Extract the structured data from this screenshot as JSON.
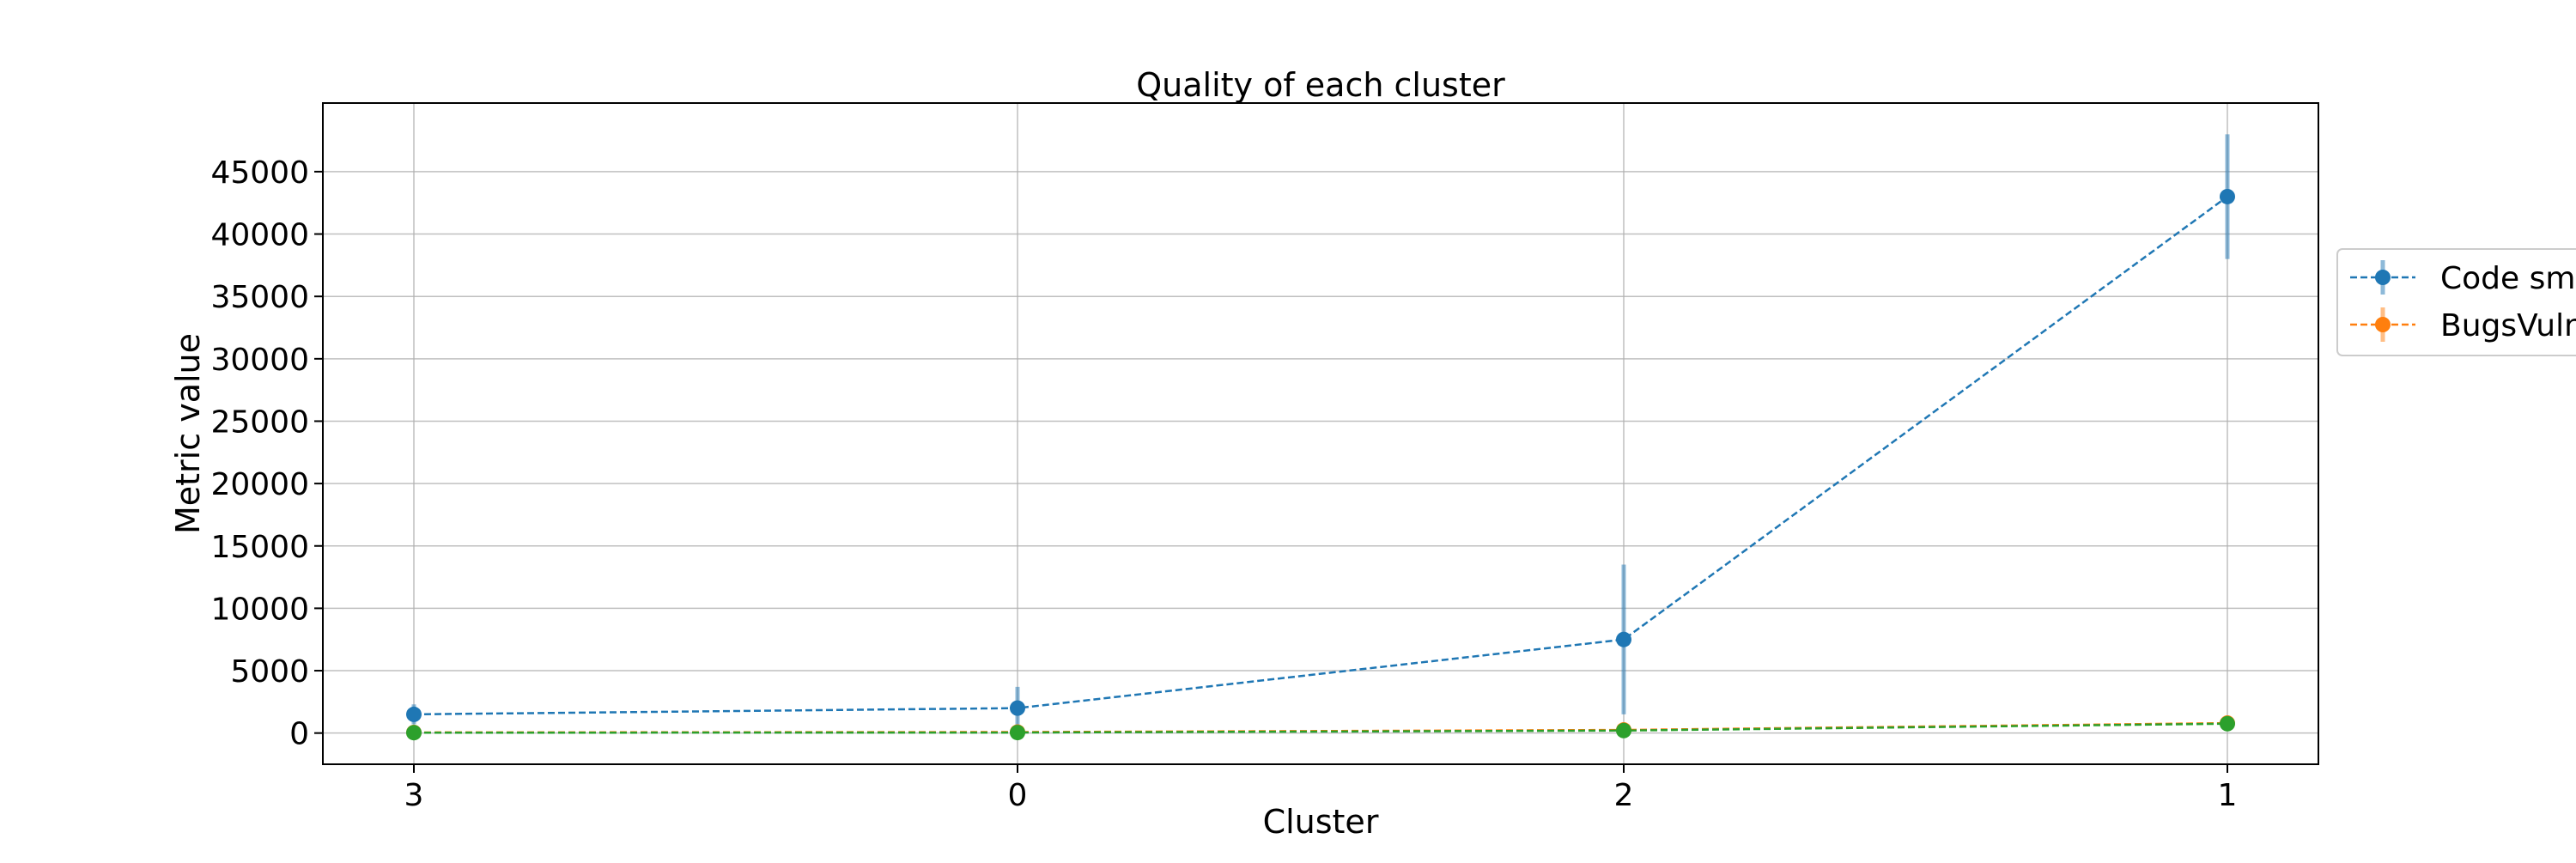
{
  "chart_data": {
    "type": "line",
    "title": "Quality of each cluster",
    "xlabel": "Cluster",
    "ylabel": "Metric value",
    "categories": [
      "3",
      "0",
      "2",
      "1"
    ],
    "ylim": [
      -2500,
      50500
    ],
    "yticks": [
      0,
      5000,
      10000,
      15000,
      20000,
      25000,
      30000,
      35000,
      40000,
      45000
    ],
    "grid": true,
    "legend_position": "right-outside",
    "series": [
      {
        "name": "Code sm",
        "color": "#1f77b4",
        "values": [
          1500,
          2000,
          7500,
          43000
        ],
        "error_low": [
          700,
          400,
          1500,
          38000
        ],
        "error_high": [
          2300,
          3700,
          13500,
          48000
        ]
      },
      {
        "name": "BugsVuln",
        "color": "#ff7f0e",
        "values": [
          50,
          80,
          250,
          800
        ],
        "error_low": [
          0,
          0,
          100,
          600
        ],
        "error_high": [
          100,
          160,
          400,
          1000
        ]
      },
      {
        "color": "#2ca02c",
        "values": [
          30,
          40,
          200,
          750
        ]
      }
    ]
  }
}
